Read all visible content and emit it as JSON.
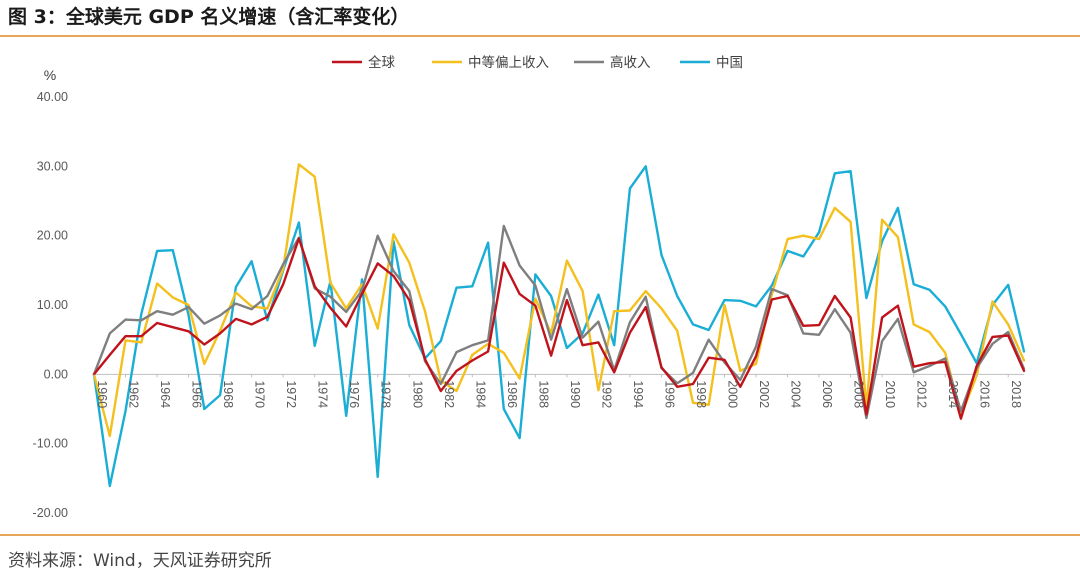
{
  "figure": {
    "title": "图 3：全球美元 GDP 名义增速（含汇率变化）",
    "source": "资料来源：Wind，天风证券研究所"
  },
  "chart_data": {
    "type": "line",
    "ylabel": "%",
    "ylim": [
      -20,
      40
    ],
    "yticks": [
      "40.00",
      "30.00",
      "20.00",
      "10.00",
      "0.00",
      "-10.00",
      "-20.00"
    ],
    "xticks": [
      "1960",
      "1962",
      "1964",
      "1966",
      "1968",
      "1970",
      "1972",
      "1974",
      "1976",
      "1978",
      "1980",
      "1982",
      "1984",
      "1986",
      "1988",
      "1990",
      "1992",
      "1994",
      "1996",
      "1998",
      "2000",
      "2002",
      "2004",
      "2006",
      "2008",
      "2010",
      "2012",
      "2014",
      "2016",
      "2018"
    ],
    "x": [
      1960,
      1961,
      1962,
      1963,
      1964,
      1965,
      1966,
      1967,
      1968,
      1969,
      1970,
      1971,
      1972,
      1973,
      1974,
      1975,
      1976,
      1977,
      1978,
      1979,
      1980,
      1981,
      1982,
      1983,
      1984,
      1985,
      1986,
      1987,
      1988,
      1989,
      1990,
      1991,
      1992,
      1993,
      1994,
      1995,
      1996,
      1997,
      1998,
      1999,
      2000,
      2001,
      2002,
      2003,
      2004,
      2005,
      2006,
      2007,
      2008,
      2009,
      2010,
      2011,
      2012,
      2013,
      2014,
      2015,
      2016,
      2017,
      2018,
      2019
    ],
    "grid": false,
    "legend_position": "top-center",
    "series": [
      {
        "name": "全球",
        "color": "#c0141c",
        "values": [
          0.0,
          2.8,
          5.5,
          5.5,
          7.4,
          6.8,
          6.2,
          4.3,
          5.9,
          8.0,
          7.2,
          8.3,
          13.0,
          19.6,
          12.7,
          9.6,
          6.9,
          11.6,
          16.0,
          14.2,
          10.7,
          2.2,
          -2.4,
          0.5,
          2.0,
          3.3,
          16.1,
          11.6,
          9.9,
          2.7,
          10.7,
          4.2,
          4.6,
          0.3,
          6.0,
          9.7,
          1.0,
          -1.8,
          -1.4,
          2.4,
          2.1,
          -1.8,
          2.6,
          10.8,
          11.3,
          7.0,
          7.1,
          11.3,
          8.2,
          -5.8,
          8.2,
          9.9,
          1.1,
          1.6,
          1.8,
          -6.4,
          1.2,
          5.4,
          5.6,
          0.5
        ]
      },
      {
        "name": "中等偏上收入",
        "color": "#f4c01e",
        "values": [
          0.0,
          -8.9,
          4.9,
          4.6,
          13.1,
          11.1,
          10.0,
          1.5,
          6.3,
          11.8,
          9.8,
          9.5,
          15.2,
          30.3,
          28.5,
          13.2,
          9.5,
          13.0,
          6.6,
          20.2,
          16.1,
          9.1,
          -0.9,
          -2.4,
          2.8,
          4.4,
          3.1,
          -0.6,
          10.9,
          5.9,
          16.4,
          12.0,
          -2.3,
          9.1,
          9.2,
          12.0,
          9.5,
          6.3,
          -4.1,
          -4.4,
          10.0,
          0.5,
          1.5,
          11.5,
          19.5,
          20.0,
          19.5,
          24.0,
          22.0,
          -4.8,
          22.3,
          19.8,
          7.2,
          6.1,
          3.1,
          -6.0,
          -0.2,
          10.5,
          7.2,
          2.0
        ]
      },
      {
        "name": "高收入",
        "color": "#7f7f7f",
        "values": [
          0.0,
          5.9,
          7.9,
          7.8,
          9.1,
          8.6,
          9.7,
          7.3,
          8.5,
          10.2,
          9.4,
          11.3,
          15.9,
          19.7,
          12.4,
          11.2,
          9.0,
          12.1,
          20.0,
          14.9,
          12.0,
          1.9,
          -1.4,
          3.2,
          4.2,
          4.9,
          21.4,
          15.7,
          12.8,
          5.0,
          12.3,
          5.3,
          7.6,
          0.6,
          7.5,
          11.2,
          0.9,
          -1.3,
          0.2,
          5.0,
          1.7,
          -0.8,
          4.0,
          12.3,
          11.4,
          5.9,
          5.7,
          9.4,
          6.0,
          -6.3,
          4.8,
          8.0,
          0.3,
          1.2,
          2.3,
          -5.3,
          0.9,
          4.4,
          6.1,
          0.8
        ]
      },
      {
        "name": "中国",
        "color": "#1aaed6",
        "values": [
          0.0,
          -16.1,
          -5.3,
          8.7,
          17.8,
          17.9,
          8.5,
          -5.0,
          -3.0,
          12.6,
          16.3,
          7.8,
          15.0,
          21.9,
          4.1,
          13.4,
          -6.0,
          13.7,
          -14.8,
          19.2,
          7.1,
          2.3,
          4.8,
          12.5,
          12.7,
          19.0,
          -5.0,
          -9.2,
          14.4,
          11.3,
          3.8,
          5.9,
          11.5,
          4.2,
          26.8,
          30.0,
          17.2,
          11.3,
          7.2,
          6.4,
          10.7,
          10.6,
          9.8,
          12.8,
          17.8,
          17.0,
          20.5,
          29.0,
          29.3,
          11.0,
          19.2,
          24.0,
          13.0,
          12.2,
          9.8,
          5.8,
          1.6,
          10.0,
          12.9,
          3.3
        ]
      }
    ]
  }
}
